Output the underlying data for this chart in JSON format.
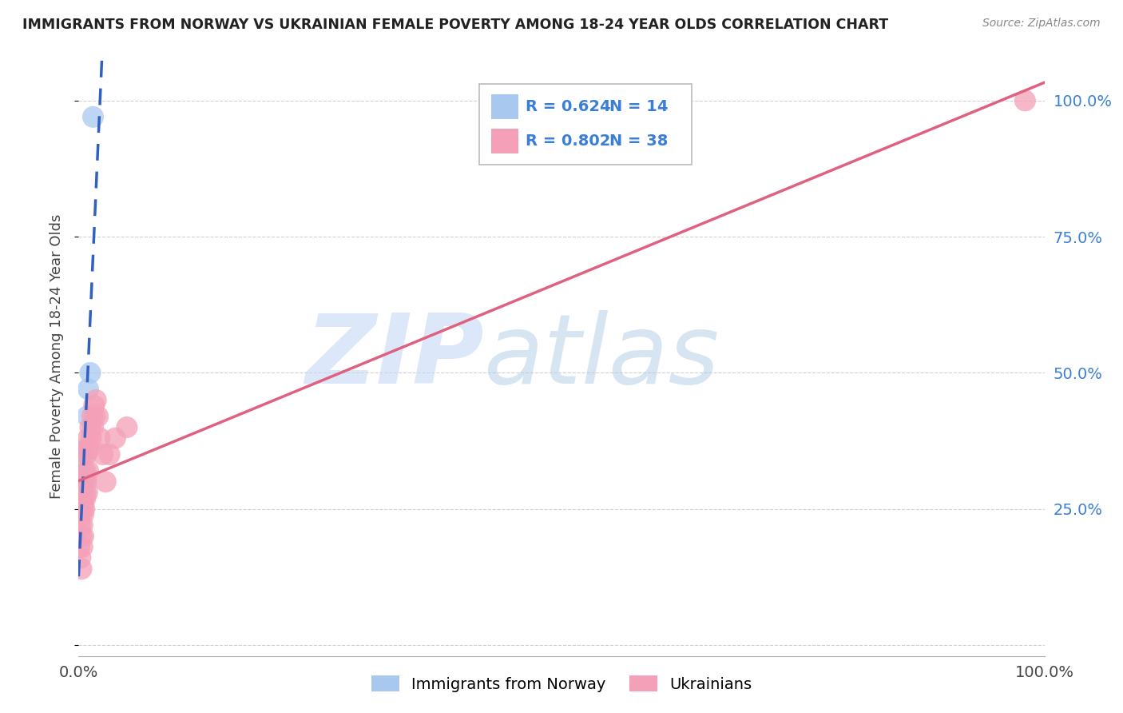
{
  "title": "IMMIGRANTS FROM NORWAY VS UKRAINIAN FEMALE POVERTY AMONG 18-24 YEAR OLDS CORRELATION CHART",
  "source": "Source: ZipAtlas.com",
  "ylabel": "Female Poverty Among 18-24 Year Olds",
  "watermark_zip": "ZIP",
  "watermark_atlas": "atlas",
  "xlim": [
    0,
    1.0
  ],
  "ylim": [
    -0.02,
    1.08
  ],
  "norway_color": "#a8c8f0",
  "ukraine_color": "#f4a0b8",
  "norway_line_color": "#3060c0",
  "ukraine_line_color": "#e06080",
  "norway_R": 0.624,
  "norway_N": 14,
  "ukraine_R": 0.802,
  "ukraine_N": 38,
  "norway_points_x": [
    0.002,
    0.003,
    0.003,
    0.004,
    0.004,
    0.005,
    0.006,
    0.007,
    0.007,
    0.008,
    0.009,
    0.01,
    0.012,
    0.015
  ],
  "norway_points_y": [
    0.335,
    0.355,
    0.28,
    0.31,
    0.26,
    0.32,
    0.3,
    0.35,
    0.28,
    0.36,
    0.42,
    0.47,
    0.5,
    0.97
  ],
  "ukraine_points_x": [
    0.001,
    0.002,
    0.002,
    0.003,
    0.003,
    0.003,
    0.004,
    0.004,
    0.004,
    0.005,
    0.005,
    0.005,
    0.006,
    0.006,
    0.007,
    0.007,
    0.008,
    0.008,
    0.009,
    0.009,
    0.01,
    0.01,
    0.011,
    0.012,
    0.013,
    0.014,
    0.015,
    0.016,
    0.017,
    0.018,
    0.02,
    0.022,
    0.025,
    0.028,
    0.032,
    0.038,
    0.05,
    0.98
  ],
  "ukraine_points_y": [
    0.18,
    0.22,
    0.16,
    0.28,
    0.2,
    0.14,
    0.25,
    0.22,
    0.18,
    0.26,
    0.24,
    0.2,
    0.3,
    0.25,
    0.32,
    0.27,
    0.35,
    0.3,
    0.36,
    0.28,
    0.38,
    0.32,
    0.36,
    0.4,
    0.38,
    0.42,
    0.4,
    0.44,
    0.42,
    0.45,
    0.42,
    0.38,
    0.35,
    0.3,
    0.35,
    0.38,
    0.4,
    1.0
  ],
  "background_color": "#ffffff",
  "grid_color": "#cccccc",
  "title_color": "#222222",
  "axis_label_color": "#444444",
  "tick_color": "#3a7fd5",
  "legend_r_color": "#3a7fd5",
  "legend_n_color": "#3a7fd5"
}
